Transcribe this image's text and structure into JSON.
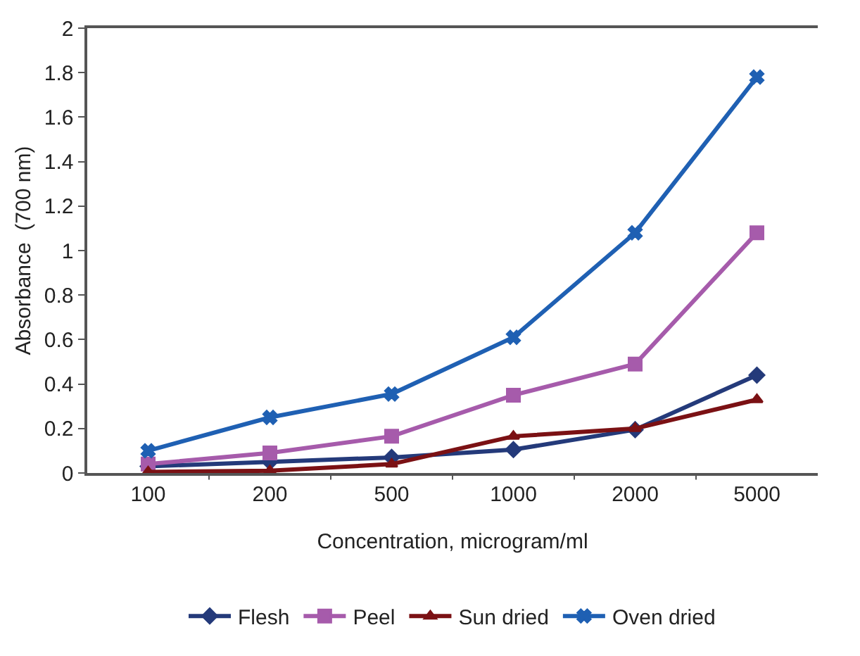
{
  "chart_data": {
    "type": "line",
    "xlabel": "Concentration, microgram/ml",
    "ylabel": "Absorbance  (700 nm)",
    "categories": [
      "100",
      "200",
      "500",
      "1000",
      "2000",
      "5000"
    ],
    "ylim": [
      0,
      2
    ],
    "yticks": [
      0,
      0.2,
      0.4,
      0.6,
      0.8,
      1,
      1.2,
      1.4,
      1.6,
      1.8,
      2
    ],
    "grid": false,
    "legend": "bottom",
    "series": [
      {
        "name": "Flesh",
        "color": "#243a7a",
        "marker": "diamond",
        "values": [
          0.03,
          0.05,
          0.07,
          0.105,
          0.195,
          0.44
        ]
      },
      {
        "name": "Peel",
        "color": "#a65bab",
        "marker": "square",
        "values": [
          0.04,
          0.09,
          0.165,
          0.35,
          0.49,
          1.08
        ]
      },
      {
        "name": "Sun dried",
        "color": "#7b1114",
        "marker": "triangle",
        "values": [
          0.005,
          0.01,
          0.04,
          0.165,
          0.2,
          0.33
        ]
      },
      {
        "name": "Oven dried",
        "color": "#1f60b3",
        "marker": "cross",
        "values": [
          0.1,
          0.25,
          0.355,
          0.61,
          1.08,
          1.78
        ]
      }
    ]
  }
}
